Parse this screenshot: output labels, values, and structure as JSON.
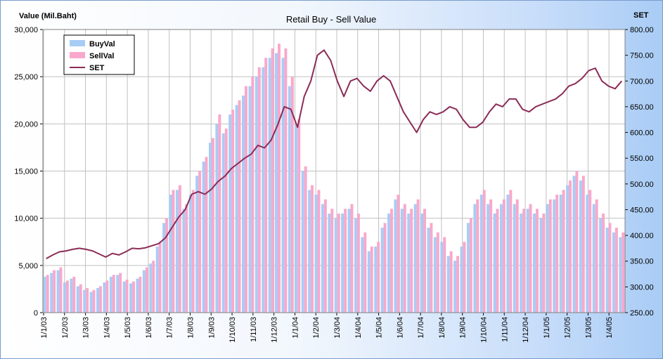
{
  "chart_data": {
    "type": "bar",
    "title": "Retail Buy - Sell Value",
    "y_left_label": "Value (Mil.Baht)",
    "y_right_label": "SET",
    "y_left_range": [
      0,
      30000
    ],
    "y_right_range": [
      250,
      800
    ],
    "y_left_ticks": [
      "0",
      "5,000",
      "10,000",
      "15,000",
      "20,000",
      "25,000",
      "30,000"
    ],
    "y_right_ticks": [
      "250.00",
      "300.00",
      "350.00",
      "400.00",
      "450.00",
      "500.00",
      "550.00",
      "600.00",
      "650.00",
      "700.00",
      "750.00",
      "800.00"
    ],
    "x_tick_labels": [
      "1/1/03",
      "1/2/03",
      "1/3/03",
      "1/4/03",
      "1/5/03",
      "1/6/03",
      "1/7/03",
      "1/8/03",
      "1/9/03",
      "1/10/03",
      "1/11/03",
      "1/12/03",
      "1/1/04",
      "1/2/04",
      "1/3/04",
      "1/4/04",
      "1/5/04",
      "1/6/04",
      "1/7/04",
      "1/8/04",
      "1/9/04",
      "1/10/04",
      "1/11/04",
      "1/12/04",
      "1/1/05",
      "1/2/05",
      "1/3/05",
      "1/4/05"
    ],
    "grid": true,
    "legend_position": "top-left",
    "colors": {
      "BuyVal": "#a8cdf5",
      "SellVal": "#f9a8cc",
      "SET": "#8b2c57"
    },
    "series": [
      {
        "name": "BuyVal",
        "type": "bar",
        "axis": "left",
        "values": [
          3800,
          4200,
          4500,
          3200,
          3600,
          2800,
          2400,
          2200,
          2600,
          3200,
          3800,
          4000,
          3300,
          3100,
          3600,
          4500,
          5200,
          7000,
          9500,
          12500,
          13000,
          11000,
          12500,
          14500,
          16000,
          18000,
          20000,
          19000,
          21000,
          22000,
          23000,
          24000,
          25000,
          26000,
          27000,
          27500,
          27000,
          24000,
          20000,
          15000,
          13000,
          12500,
          11500,
          10500,
          10000,
          10500,
          11000,
          10000,
          8000,
          6500,
          7000,
          9000,
          10500,
          12000,
          11000,
          10500,
          11500,
          10500,
          9000,
          8000,
          7500,
          6000,
          5500,
          7000,
          9500,
          11500,
          12500,
          11500,
          10500,
          11500,
          12500,
          11500,
          10500,
          11000,
          10500,
          10000,
          11500,
          12000,
          12500,
          13500,
          14500,
          14000,
          12500,
          11500,
          10000,
          9000,
          8500,
          8000
        ]
      },
      {
        "name": "SellVal",
        "type": "bar",
        "axis": "left",
        "values": [
          4000,
          4500,
          4800,
          3400,
          3800,
          3000,
          2600,
          2400,
          2800,
          3400,
          4000,
          4200,
          3500,
          3300,
          3800,
          4800,
          5500,
          7500,
          10000,
          13000,
          13500,
          11500,
          13000,
          15000,
          16500,
          18500,
          21000,
          19500,
          21500,
          22500,
          24000,
          25000,
          26000,
          27000,
          28000,
          28500,
          28000,
          25000,
          20500,
          15500,
          13500,
          13000,
          12000,
          11000,
          10500,
          11000,
          11500,
          10500,
          8500,
          7000,
          7500,
          9500,
          11000,
          12500,
          11500,
          11000,
          12000,
          11000,
          9500,
          8500,
          8000,
          6500,
          6000,
          7500,
          10000,
          12000,
          13000,
          12000,
          11000,
          12000,
          13000,
          12000,
          11000,
          11500,
          11000,
          10500,
          12000,
          12500,
          13000,
          14000,
          15000,
          14500,
          13000,
          12000,
          10500,
          9500,
          9000,
          8500
        ]
      },
      {
        "name": "SET",
        "type": "line",
        "axis": "right",
        "values": [
          355,
          362,
          368,
          370,
          373,
          375,
          373,
          370,
          364,
          358,
          365,
          362,
          368,
          375,
          374,
          376,
          380,
          384,
          395,
          415,
          435,
          450,
          480,
          485,
          480,
          490,
          505,
          515,
          530,
          540,
          550,
          558,
          575,
          570,
          585,
          615,
          650,
          645,
          610,
          670,
          700,
          750,
          760,
          740,
          700,
          670,
          700,
          705,
          690,
          680,
          700,
          710,
          700,
          670,
          640,
          620,
          600,
          625,
          640,
          635,
          640,
          650,
          645,
          625,
          610,
          610,
          620,
          640,
          655,
          650,
          665,
          665,
          645,
          640,
          650,
          655,
          660,
          665,
          675,
          690,
          695,
          705,
          720,
          725,
          700,
          690,
          685,
          700
        ]
      }
    ]
  }
}
